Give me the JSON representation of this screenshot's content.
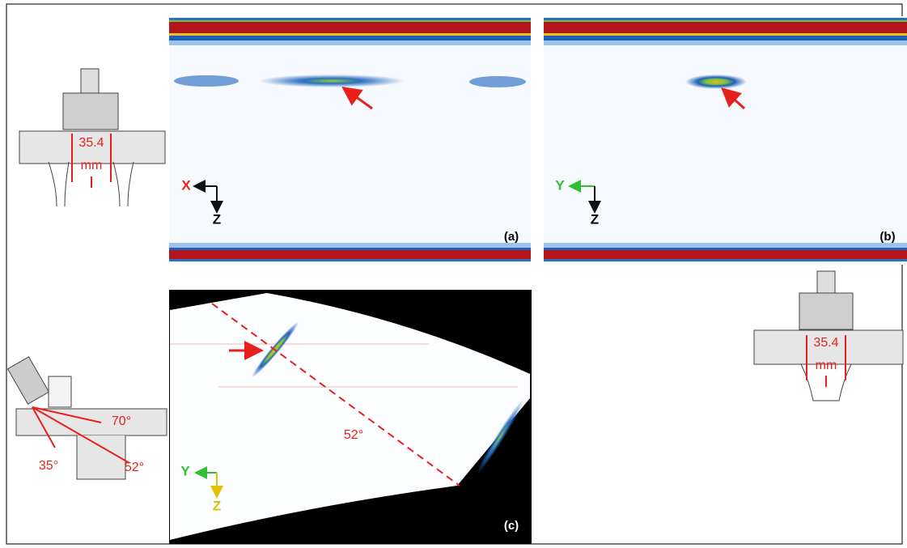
{
  "panels": [
    {
      "label": "(a)",
      "axes": [
        "X",
        "Z"
      ]
    },
    {
      "label": "(b)",
      "axes": [
        "Y",
        "Z"
      ]
    },
    {
      "label": "(c)",
      "axes": [
        "Y",
        "Z"
      ],
      "angle": "52°"
    }
  ],
  "diagrams": [
    {
      "dimension": "35.4",
      "unit": "mm"
    },
    {
      "angles": [
        "70°",
        "35°",
        "52°"
      ]
    },
    {
      "dimension": "35.4",
      "unit": "mm"
    }
  ]
}
